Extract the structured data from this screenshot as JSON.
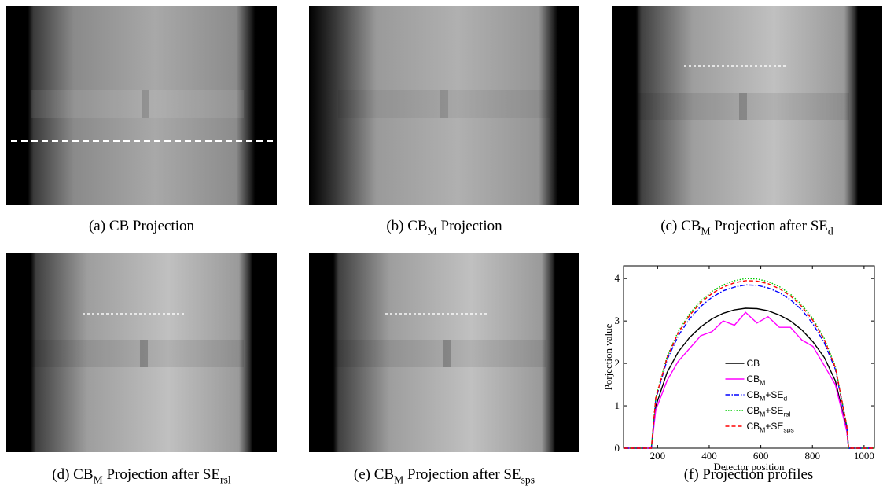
{
  "panels": [
    {
      "caption": [
        "(a) CB Projection"
      ]
    },
    {
      "caption": [
        "(b) CB",
        "M",
        " Projection"
      ]
    },
    {
      "caption": [
        "(c) CB",
        "M",
        " Projection after SE",
        "d"
      ]
    },
    {
      "caption": [
        "(d) CB",
        "M",
        " Projection after SE",
        "rsl"
      ]
    },
    {
      "caption": [
        "(e) CB",
        "M",
        " Projection after SE",
        "sps"
      ]
    },
    {
      "caption": [
        "(f) Projection profiles"
      ]
    }
  ],
  "chart_data": {
    "type": "line",
    "xlabel": "Detector position",
    "ylabel": "Porjection value",
    "x": [
      70,
      120,
      176,
      193,
      237,
      280,
      324,
      367,
      411,
      454,
      498,
      541,
      585,
      628,
      672,
      715,
      759,
      802,
      846,
      889,
      933,
      940,
      1040
    ],
    "xlim": [
      68,
      1040
    ],
    "ylim": [
      0,
      4.3
    ],
    "xticks": [
      200,
      400,
      600,
      800,
      1000
    ],
    "yticks": [
      0,
      1,
      2,
      3,
      4
    ],
    "legend": "center",
    "series": [
      {
        "name": [
          "CB"
        ],
        "color": "#000000",
        "dash": "solid",
        "values": [
          0,
          0,
          0,
          0.99,
          1.79,
          2.27,
          2.61,
          2.86,
          3.05,
          3.18,
          3.26,
          3.3,
          3.29,
          3.24,
          3.14,
          3.0,
          2.79,
          2.51,
          2.14,
          1.59,
          0.44,
          0,
          0
        ]
      },
      {
        "name": [
          "CB",
          "M"
        ],
        "color": "#ff00ff",
        "dash": "solid",
        "values": [
          0,
          0,
          0,
          0.9,
          1.6,
          2.05,
          2.35,
          2.65,
          2.75,
          3.0,
          2.9,
          3.2,
          2.95,
          3.1,
          2.85,
          2.85,
          2.55,
          2.4,
          1.95,
          1.5,
          0.4,
          0,
          0
        ]
      },
      {
        "name": [
          "CB",
          "M",
          "+SE",
          "d"
        ],
        "color": "#0000ff",
        "dash": "dashdot",
        "values": [
          0,
          0,
          0,
          1.15,
          2.09,
          2.65,
          3.05,
          3.34,
          3.56,
          3.71,
          3.8,
          3.85,
          3.84,
          3.78,
          3.67,
          3.5,
          3.26,
          2.93,
          2.49,
          1.86,
          0.52,
          0,
          0
        ]
      },
      {
        "name": [
          "CB",
          "M",
          "+SE",
          "rsl"
        ],
        "color": "#00cc00",
        "dash": "dotted",
        "values": [
          0,
          0,
          0,
          1.2,
          2.17,
          2.75,
          3.17,
          3.47,
          3.7,
          3.85,
          3.95,
          4.0,
          3.99,
          3.93,
          3.81,
          3.63,
          3.38,
          3.05,
          2.59,
          1.93,
          0.54,
          0,
          0
        ]
      },
      {
        "name": [
          "CB",
          "M",
          "+SE",
          "sps"
        ],
        "color": "#ff0000",
        "dash": "dashed",
        "values": [
          0,
          0,
          0,
          1.18,
          2.14,
          2.72,
          3.13,
          3.43,
          3.65,
          3.8,
          3.9,
          3.95,
          3.94,
          3.88,
          3.76,
          3.59,
          3.34,
          3.01,
          2.56,
          1.9,
          0.53,
          0,
          0
        ]
      }
    ]
  }
}
